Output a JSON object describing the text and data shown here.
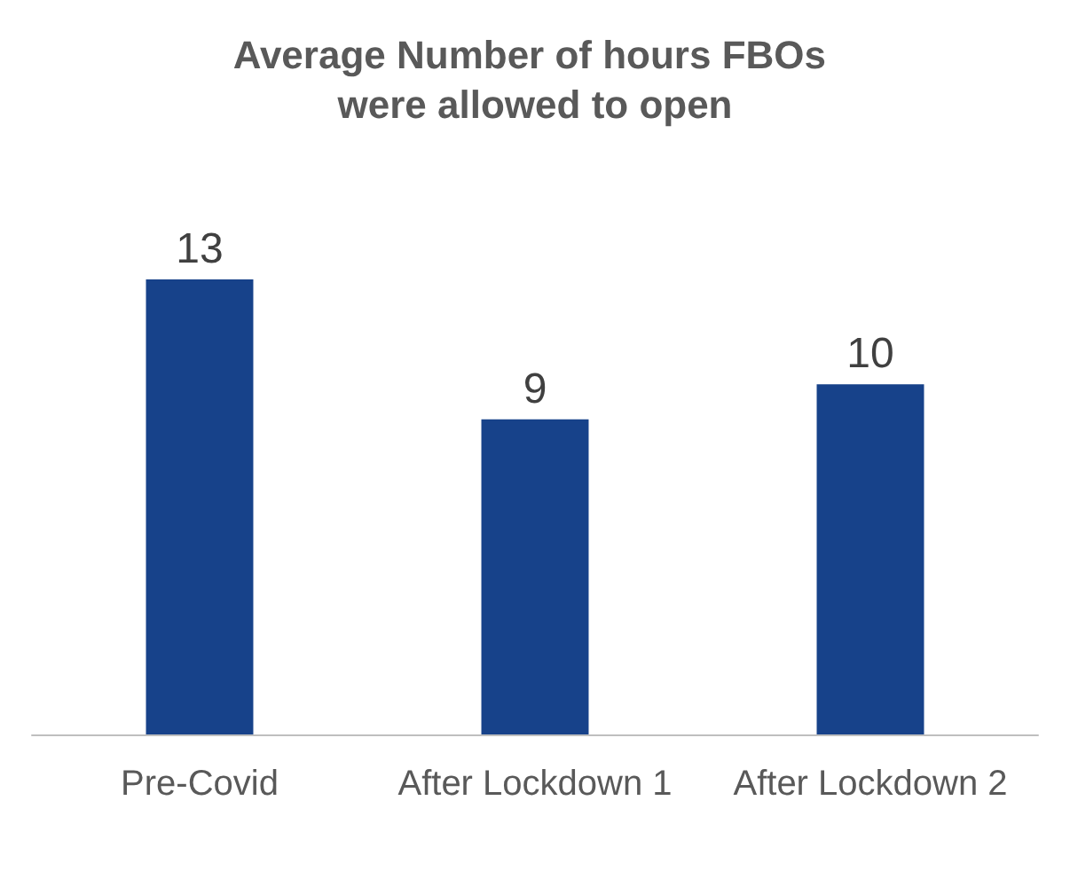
{
  "chart_data": {
    "type": "bar",
    "title": "Average Number of hours FBOs were allowed to open",
    "categories": [
      "Pre-Covid",
      "After Lockdown 1",
      "After Lockdown 2"
    ],
    "values": [
      13,
      9,
      10
    ],
    "color": "#17428a",
    "data_labels": true
  }
}
